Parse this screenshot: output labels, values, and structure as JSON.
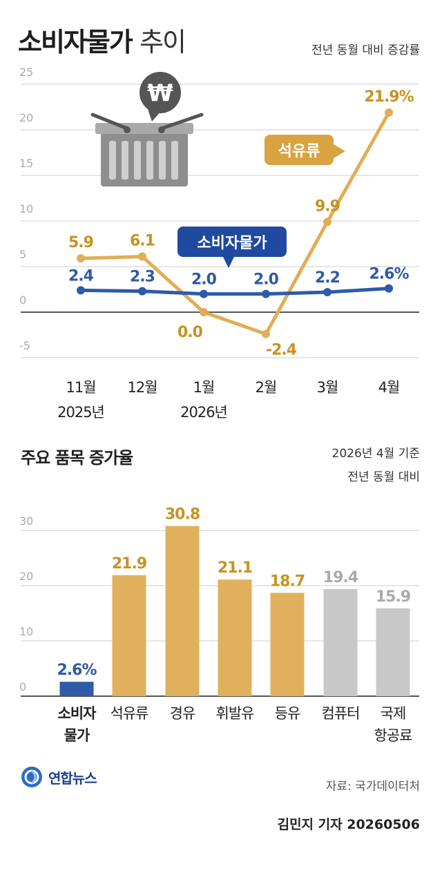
{
  "header": {
    "title": "소비자물가",
    "title_suffix": "추이",
    "note": "전년 동월 대비 증감률"
  },
  "chart_data": [
    {
      "type": "line",
      "x": [
        "11월\n2025년",
        "12월",
        "1월\n2026년",
        "2월",
        "3월",
        "4월"
      ],
      "ylim": [
        -5,
        25
      ],
      "yticks": [
        "25",
        "20",
        "15",
        "10",
        "5",
        "0",
        "-5"
      ],
      "grid": true,
      "series": [
        {
          "name": "소비자물가",
          "color": "#2e5aa8",
          "values": [
            2.4,
            2.3,
            2.0,
            2.0,
            2.2,
            2.6
          ],
          "labels": [
            "2.4",
            "2.3",
            "2.0",
            "2.0",
            "2.2",
            "2.6%"
          ]
        },
        {
          "name": "석유류",
          "color": "#e1ad55",
          "label_color": "#c99220",
          "values": [
            5.9,
            6.1,
            0.0,
            -2.4,
            9.9,
            21.9
          ],
          "labels": [
            "5.9",
            "6.1",
            "0.0",
            "-2.4",
            "9.9",
            "21.9%"
          ]
        }
      ]
    },
    {
      "type": "bar",
      "title": "주요 품목 증가율",
      "note": [
        "2026년 4월 기준",
        "전년 동월 대비"
      ],
      "categories": [
        "소비자\n물가",
        "석유류",
        "경유",
        "휘발유",
        "등유",
        "컴퓨터",
        "국제\n항공료"
      ],
      "values": [
        2.6,
        21.9,
        30.8,
        21.1,
        18.7,
        19.4,
        15.9
      ],
      "labels": [
        "2.6%",
        "21.9",
        "30.8",
        "21.1",
        "18.7",
        "19.4",
        "15.9"
      ],
      "bar_colors": [
        "#2e5aa8",
        "#e1b05d",
        "#e1b05d",
        "#e1b05d",
        "#e1b05d",
        "#c8c8c8",
        "#c8c8c8"
      ],
      "label_colors": [
        "#2e5aa8",
        "#c99220",
        "#c99220",
        "#c99220",
        "#c99220",
        "#aaaaaa",
        "#aaaaaa"
      ],
      "ylim": [
        0,
        33
      ],
      "yticks": [
        "30",
        "20",
        "10",
        "0"
      ],
      "grid": true
    }
  ],
  "footer": {
    "logo_text": "연합뉴스",
    "source": "자료: 국가데이터처",
    "byline": "김민지 기자  20260506"
  },
  "icons": [
    "basket-icon",
    "won-icon"
  ]
}
